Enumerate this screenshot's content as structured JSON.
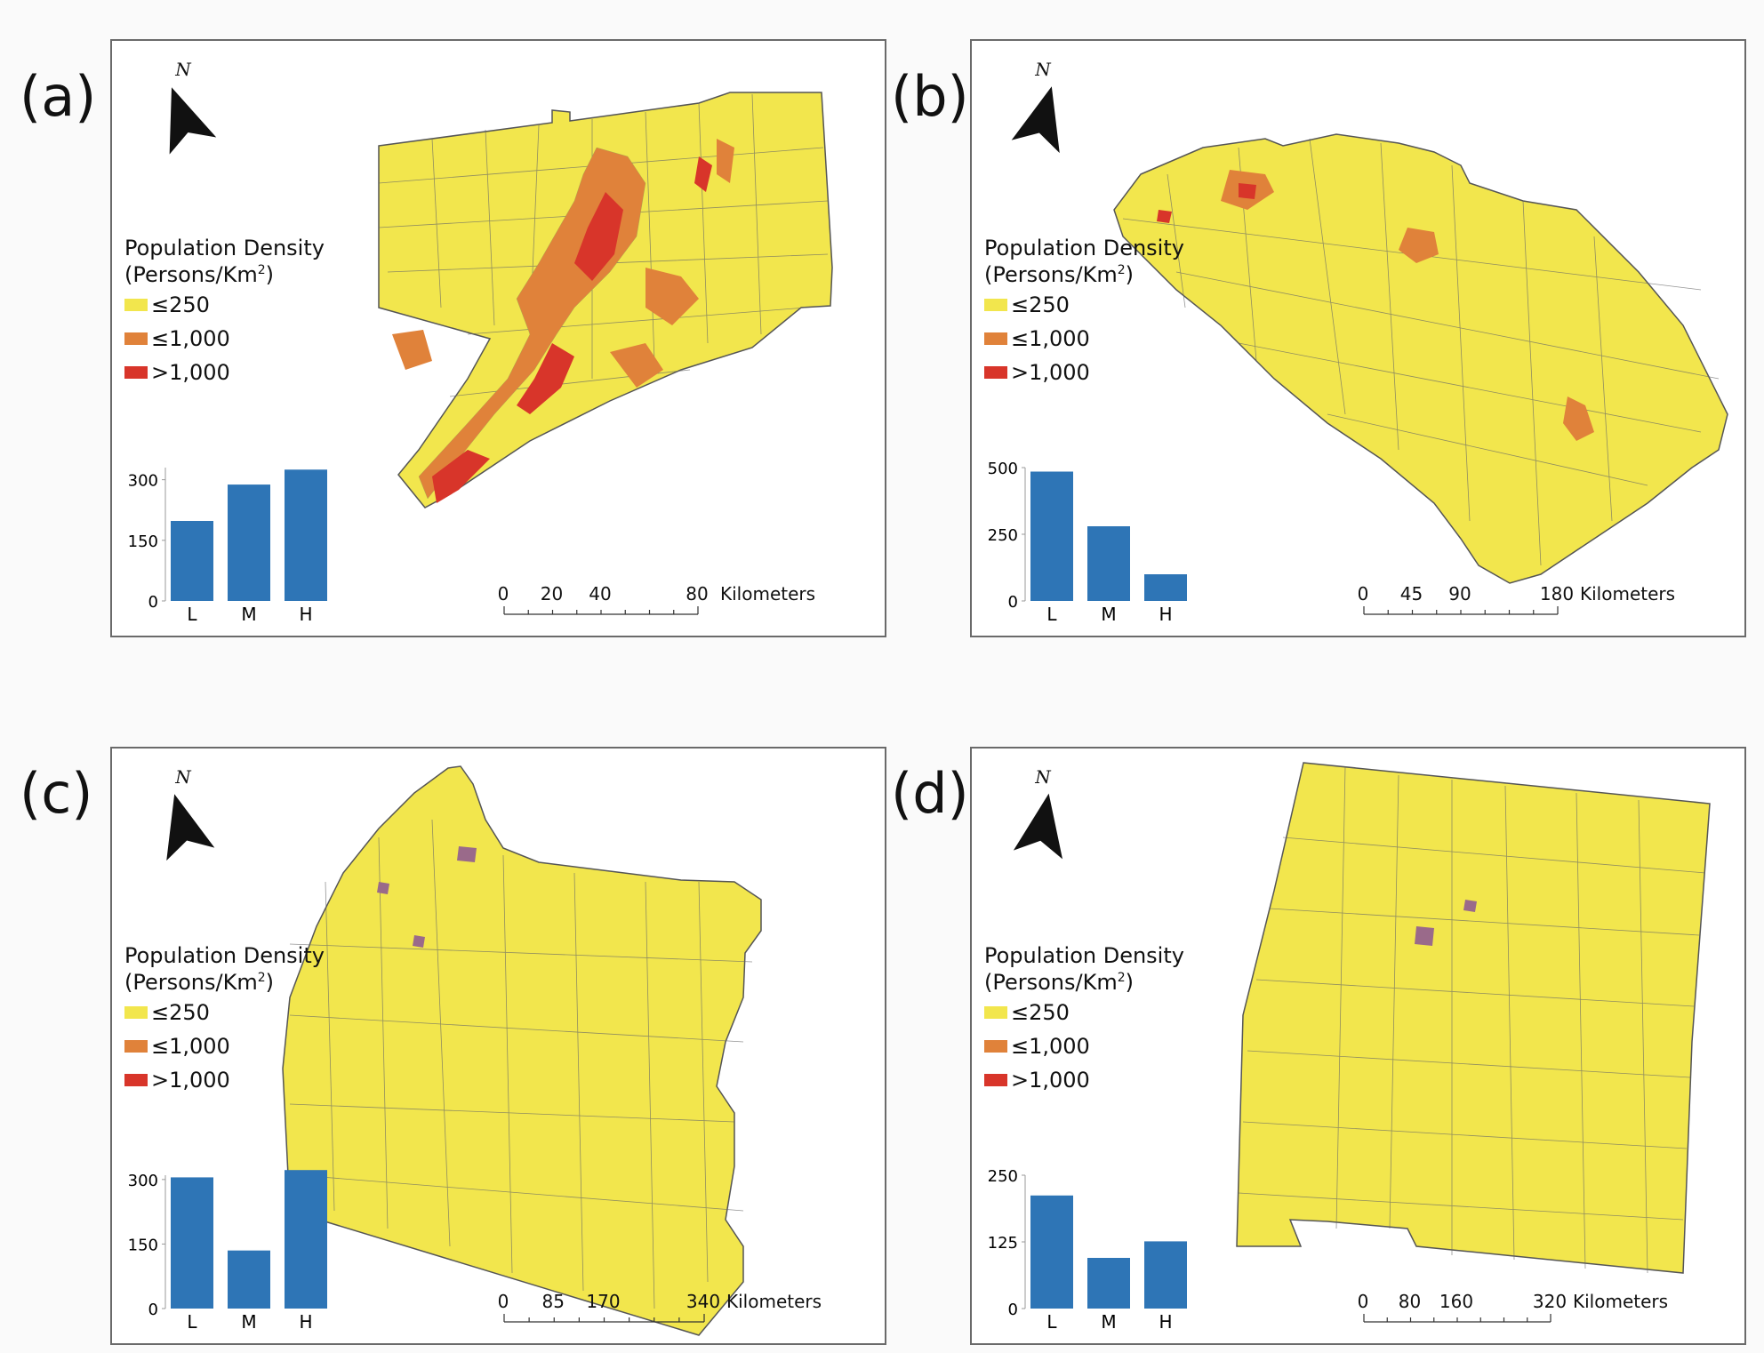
{
  "legend": {
    "title_line1": "Population Density",
    "title_line2_prefix": "(Persons/Km",
    "title_line2_sup": "2",
    "title_line2_suffix": ")",
    "classes": [
      {
        "label": "≤250",
        "color": "#f2e64d"
      },
      {
        "label": "≤1,000",
        "color": "#e0823a"
      },
      {
        "label": ">1,000",
        "color": "#d8352a"
      }
    ]
  },
  "north_letter": "N",
  "bar_color": "#2e75b6",
  "panels": [
    {
      "id": "a",
      "label": "(a)",
      "chart_data": {
        "type": "bar",
        "categories": [
          "L",
          "M",
          "H"
        ],
        "values": [
          198,
          288,
          325
        ],
        "yticks": [
          "300",
          "150",
          "0"
        ],
        "ytick_values": [
          300,
          150,
          0
        ],
        "ylim": [
          0,
          330
        ]
      },
      "scale": {
        "ticks": [
          "0",
          "20",
          "40",
          "80"
        ],
        "tick_values": [
          0,
          20,
          40,
          80
        ],
        "max": 80,
        "unit": "Kilometers"
      }
    },
    {
      "id": "b",
      "label": "(b)",
      "chart_data": {
        "type": "bar",
        "categories": [
          "L",
          "M",
          "H"
        ],
        "values": [
          485,
          280,
          100
        ],
        "yticks": [
          "500",
          "250",
          "0"
        ],
        "ytick_values": [
          500,
          250,
          0
        ],
        "ylim": [
          0,
          500
        ]
      },
      "scale": {
        "ticks": [
          "0",
          "45",
          "90",
          "180"
        ],
        "tick_values": [
          0,
          45,
          90,
          180
        ],
        "max": 180,
        "unit": "Kilometers"
      }
    },
    {
      "id": "c",
      "label": "(c)",
      "chart_data": {
        "type": "bar",
        "categories": [
          "L",
          "M",
          "H"
        ],
        "values": [
          305,
          135,
          322
        ],
        "yticks": [
          "300",
          "150",
          "0"
        ],
        "ytick_values": [
          300,
          150,
          0
        ],
        "ylim": [
          0,
          310
        ]
      },
      "scale": {
        "ticks": [
          "0",
          "85",
          "170",
          "340"
        ],
        "tick_values": [
          0,
          85,
          170,
          340
        ],
        "max": 340,
        "unit": "Kilometers"
      }
    },
    {
      "id": "d",
      "label": "(d)",
      "chart_data": {
        "type": "bar",
        "categories": [
          "L",
          "M",
          "H"
        ],
        "values": [
          212,
          95,
          126
        ],
        "yticks": [
          "250",
          "125",
          "0"
        ],
        "ytick_values": [
          250,
          125,
          0
        ],
        "ylim": [
          0,
          250
        ]
      },
      "scale": {
        "ticks": [
          "0",
          "80",
          "160",
          "320"
        ],
        "tick_values": [
          0,
          80,
          160,
          320
        ],
        "max": 320,
        "unit": "Kilometers"
      }
    }
  ]
}
